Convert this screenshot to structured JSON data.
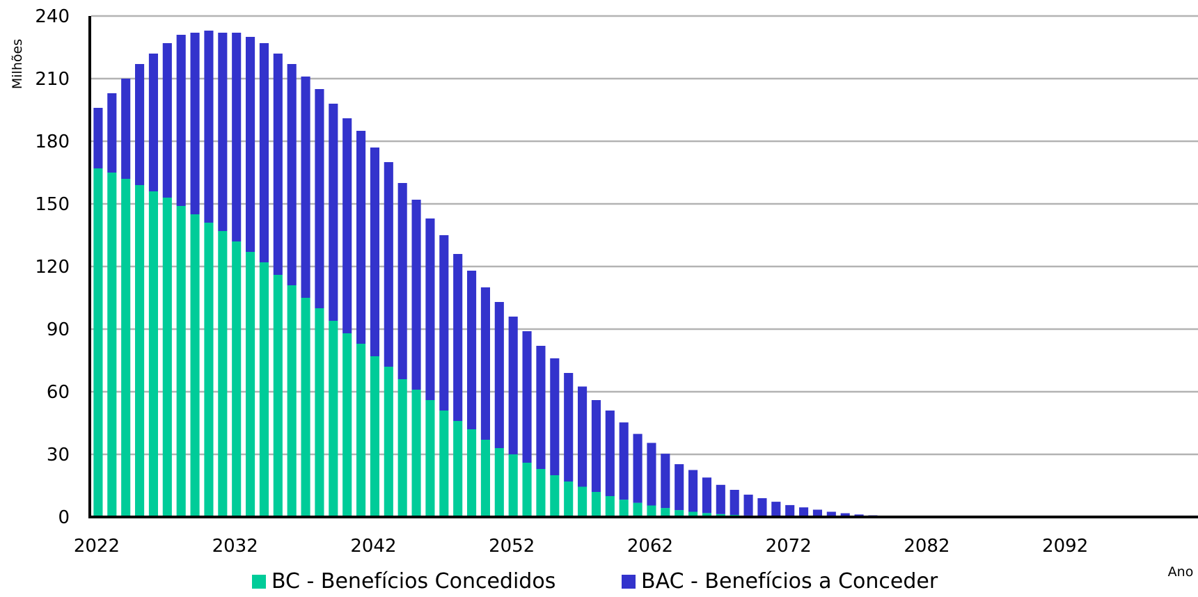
{
  "chart_data": {
    "type": "bar",
    "stacked": true,
    "ylabel": "Milhões",
    "xlabel": "Ano",
    "ylim": [
      0,
      240
    ],
    "yticks": [
      0,
      30,
      60,
      90,
      120,
      150,
      180,
      210,
      240
    ],
    "xticks": [
      2022,
      2032,
      2042,
      2052,
      2062,
      2072,
      2082,
      2092
    ],
    "xlim": [
      2022,
      2102
    ],
    "grid": true,
    "legend_position": "bottom",
    "x": [
      2022,
      2023,
      2024,
      2025,
      2026,
      2027,
      2028,
      2029,
      2030,
      2031,
      2032,
      2033,
      2034,
      2035,
      2036,
      2037,
      2038,
      2039,
      2040,
      2041,
      2042,
      2043,
      2044,
      2045,
      2046,
      2047,
      2048,
      2049,
      2050,
      2051,
      2052,
      2053,
      2054,
      2055,
      2056,
      2057,
      2058,
      2059,
      2060,
      2061,
      2062,
      2063,
      2064,
      2065,
      2066,
      2067,
      2068,
      2069,
      2070,
      2071,
      2072,
      2073,
      2074,
      2075,
      2076,
      2077,
      2078,
      2079,
      2080,
      2081,
      2082,
      2083,
      2084,
      2085,
      2086,
      2087,
      2088,
      2089,
      2090,
      2091,
      2092,
      2093,
      2094,
      2095,
      2096,
      2097,
      2098,
      2099,
      2100,
      2101
    ],
    "series": [
      {
        "name": "BC - Benefícios Concedidos",
        "color": "#00CC99",
        "values": [
          167,
          165,
          162,
          159,
          156,
          153,
          149,
          145,
          141,
          137,
          132,
          127,
          122,
          116,
          111,
          105,
          100,
          94,
          88,
          83,
          77,
          72,
          66,
          61,
          56,
          51,
          46,
          42,
          37,
          33,
          30,
          26,
          23,
          20,
          17,
          14.5,
          12,
          10,
          8.3,
          6.8,
          5.5,
          4.3,
          3.3,
          2.5,
          1.9,
          1.4,
          1.0,
          0.7,
          0.5,
          0.3,
          0.2,
          0.1,
          0.1,
          0,
          0,
          0,
          0,
          0,
          0,
          0,
          0,
          0,
          0,
          0,
          0,
          0,
          0,
          0,
          0,
          0,
          0,
          0,
          0,
          0,
          0,
          0,
          0,
          0,
          0,
          0
        ]
      },
      {
        "name": "BAC - Benefícios a Conceder",
        "color": "#3333CC",
        "values": [
          29,
          38,
          48,
          58,
          66,
          74,
          82,
          87,
          92,
          95,
          100,
          103,
          105,
          106,
          106,
          106,
          105,
          104,
          103,
          102,
          100,
          98,
          94,
          91,
          87,
          84,
          80,
          76,
          73,
          70,
          66,
          63,
          59,
          56,
          52,
          48,
          44,
          41,
          37,
          33,
          30,
          26,
          22,
          20,
          17,
          14,
          12,
          10,
          8.5,
          7,
          5.5,
          4.5,
          3.4,
          2.5,
          1.8,
          1.2,
          0.8,
          0.5,
          0.3,
          0.15,
          0.05,
          0,
          0,
          0,
          0,
          0,
          0,
          0,
          0,
          0,
          0,
          0,
          0,
          0,
          0,
          0,
          0,
          0,
          0,
          0
        ]
      }
    ]
  }
}
